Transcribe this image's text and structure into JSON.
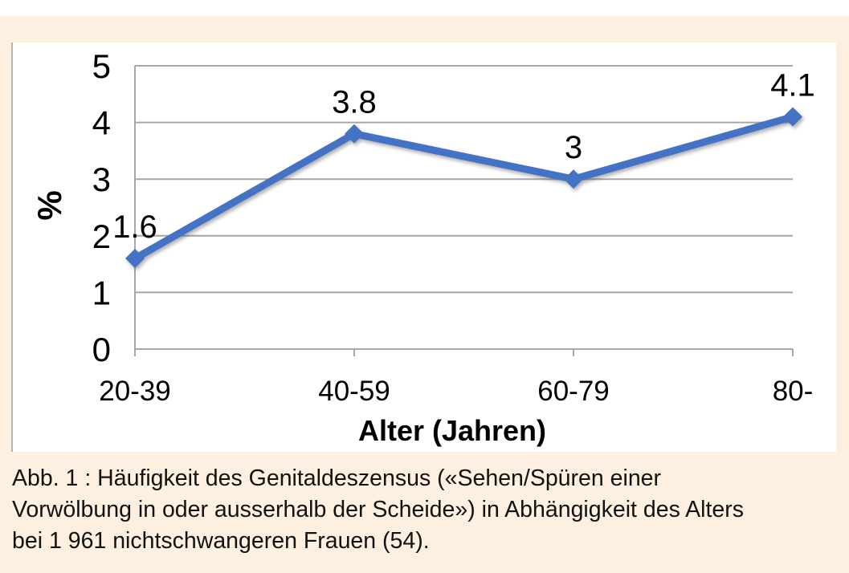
{
  "panel": {
    "background_color": "#fdf0e1",
    "chart_background_color": "#ffffff"
  },
  "chart_data": {
    "type": "line",
    "title": "",
    "categories": [
      "20-39",
      "40-59",
      "60-79",
      "80-"
    ],
    "values": [
      1.6,
      3.8,
      3,
      4.1
    ],
    "data_labels": [
      "1.6",
      "3.8",
      "3",
      "4.1"
    ],
    "xlabel": "Alter (Jahren)",
    "ylabel": "%",
    "ylim": [
      0,
      5
    ],
    "yticks": [
      0,
      1,
      2,
      3,
      4,
      5
    ],
    "grid": true,
    "legend": "none",
    "marker": "diamond",
    "line_color": "#4472c4",
    "grid_color": "#a6a6a6",
    "label_color": "#000000"
  },
  "caption": {
    "lines": [
      "Abb. 1 : Häufigkeit des Genitaldeszensus («Sehen/Spüren einer",
      "Vorwölbung in oder ausserhalb der Scheide») in Abhängigkeit des Alters",
      "bei 1 961 nichtschwangeren Frauen (54)."
    ]
  }
}
